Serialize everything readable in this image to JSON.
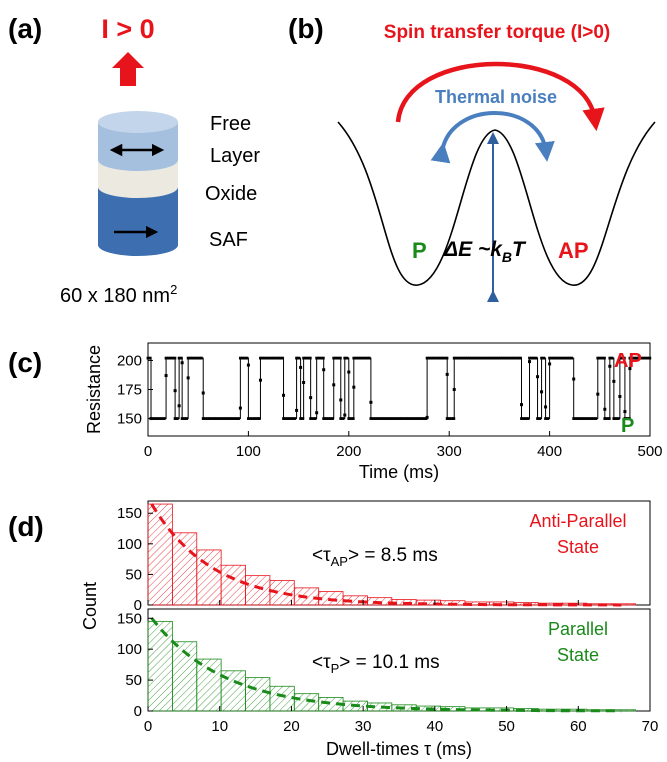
{
  "panels": {
    "a": "(a)",
    "b": "(b)",
    "c": "(c)",
    "d": "(d)"
  },
  "panel_a": {
    "current": "I > 0",
    "free": "Free",
    "layer": "Layer",
    "oxide": "Oxide",
    "saf": "SAF",
    "size_main": "60 x 180 nm",
    "size_sup": "2"
  },
  "panel_b": {
    "stt": "Spin transfer torque (I>0)",
    "noise": "Thermal noise",
    "p": "P",
    "ap": "AP",
    "energy": "ΔE ~k",
    "energy_sub": "B",
    "energy_T": "T"
  },
  "colors": {
    "red": "#e8141c",
    "blue": "#4a7fbf",
    "green": "#1a8a1a",
    "dark_blue": "#2f5f9e"
  },
  "chart_data": [
    {
      "type": "line",
      "id": "c",
      "xlabel": "Time (ms)",
      "ylabel": "Resistance",
      "xlim": [
        0,
        500
      ],
      "ylim": [
        135,
        215
      ],
      "xticks": [
        0,
        100,
        200,
        300,
        400,
        500
      ],
      "yticks": [
        150,
        175,
        200
      ],
      "state_labels": {
        "AP": "AP",
        "P": "P"
      },
      "levels": {
        "AP": 202,
        "P": 150
      },
      "switch_times": [
        3,
        18,
        27,
        31,
        34,
        40,
        55,
        92,
        100,
        112,
        135,
        148,
        152,
        155,
        162,
        168,
        175,
        185,
        192,
        196,
        200,
        205,
        222,
        278,
        298,
        305,
        372,
        380,
        388,
        392,
        396,
        400,
        424,
        448,
        455,
        460,
        464,
        470,
        475,
        480
      ],
      "start_state": "AP"
    },
    {
      "type": "bar",
      "id": "d_ap",
      "legend": [
        "Anti-Parallel",
        "State"
      ],
      "annotation": {
        "text": "<τ",
        "sub": "AP",
        "rest": "> = 8.5 ms"
      },
      "ylabel": "Count",
      "xlim": [
        0,
        70
      ],
      "ylim": [
        0,
        170
      ],
      "yticks": [
        0,
        50,
        100,
        150
      ],
      "bin_width": 3.4,
      "values": [
        165,
        118,
        90,
        65,
        48,
        40,
        28,
        22,
        15,
        12,
        9,
        8,
        7,
        5,
        5,
        4,
        3,
        3,
        2,
        2
      ],
      "fit_tau": 8.5,
      "fit_amplitude": 175
    },
    {
      "type": "bar",
      "id": "d_p",
      "legend": [
        "Parallel",
        "State"
      ],
      "annotation": {
        "text": "<τ",
        "sub": "P",
        "rest": "> = 10.1 ms"
      },
      "xlabel": "Dwell-times τ (ms)",
      "ylabel": "Count",
      "xlim": [
        0,
        70
      ],
      "ylim": [
        0,
        165
      ],
      "xticks": [
        0,
        10,
        20,
        30,
        40,
        50,
        60,
        70
      ],
      "yticks": [
        0,
        50,
        100,
        150
      ],
      "bin_width": 3.4,
      "values": [
        145,
        112,
        84,
        65,
        54,
        40,
        28,
        22,
        16,
        13,
        10,
        8,
        7,
        5,
        5,
        4,
        3,
        3,
        2,
        2
      ],
      "fit_tau": 10.1,
      "fit_amplitude": 158
    }
  ]
}
